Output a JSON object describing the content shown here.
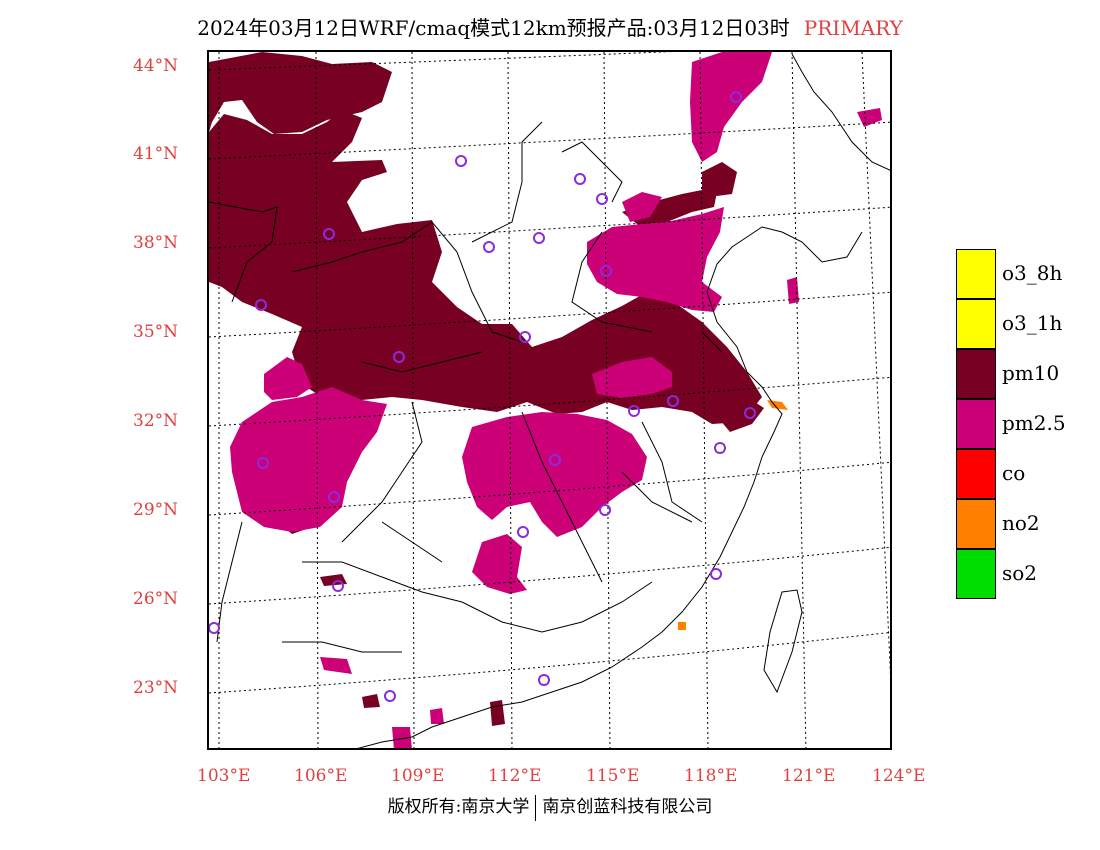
{
  "header": {
    "title": "2024年03月12日WRF/cmaq模式12km预报产品:03月12日03时",
    "product_tag": "PRIMARY"
  },
  "axes": {
    "lat_labels": [
      "44°N",
      "41°N",
      "38°N",
      "35°N",
      "32°N",
      "29°N",
      "26°N",
      "23°N"
    ],
    "lon_labels": [
      "103°E",
      "106°E",
      "109°E",
      "112°E",
      "115°E",
      "118°E",
      "121°E",
      "124°E"
    ]
  },
  "legend": {
    "items": [
      {
        "label": "o3_8h",
        "color": "#ffff00"
      },
      {
        "label": "o3_1h",
        "color": "#ffff00"
      },
      {
        "label": "pm10",
        "color": "#780022"
      },
      {
        "label": "pm2.5",
        "color": "#cc0077"
      },
      {
        "label": "co",
        "color": "#ff0000"
      },
      {
        "label": "no2",
        "color": "#ff7f00"
      },
      {
        "label": "so2",
        "color": "#00dd00"
      }
    ]
  },
  "footer": {
    "left": "版权所有:南京大学",
    "right": "南京创蓝科技有限公司"
  },
  "colors": {
    "pm10": "#780022",
    "pm25": "#cc0077",
    "no2": "#ff7f00",
    "station_marker": "#8a2be2",
    "axis_label": "#e04040"
  }
}
